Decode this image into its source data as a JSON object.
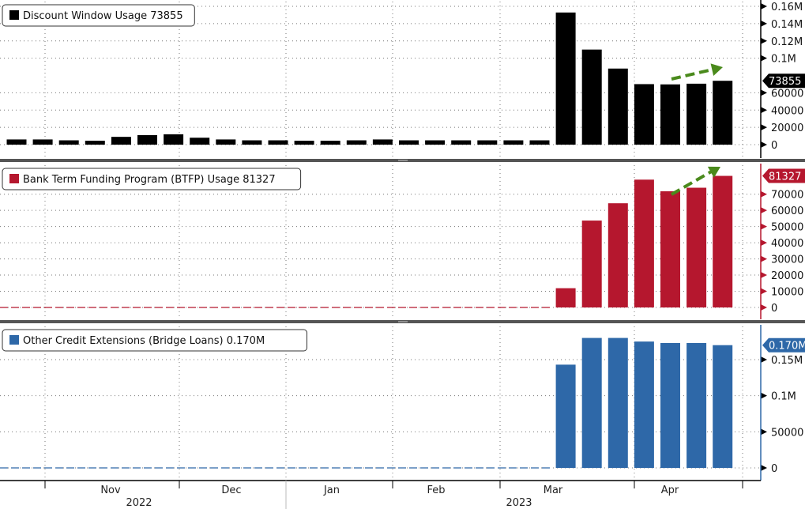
{
  "chart_data": [
    {
      "type": "bar",
      "title": "Discount Window Usage 73855",
      "legend_label": "Discount Window Usage 73855",
      "color": "#000000",
      "last_value_label": "73855",
      "ylim": [
        0,
        160000
      ],
      "yticks": [
        0,
        20000,
        40000,
        60000,
        100000,
        120000,
        140000,
        160000
      ],
      "ytick_labels": [
        "0",
        "20000",
        "40000",
        "60000",
        "0.1M",
        "0.12M",
        "0.14M",
        "0.16M"
      ],
      "values": [
        6000,
        6000,
        5000,
        4500,
        9000,
        11000,
        12000,
        8000,
        6000,
        5000,
        5000,
        4500,
        4500,
        5000,
        6000,
        5000,
        5000,
        5000,
        5000,
        5000,
        5000,
        152850,
        110000,
        88000,
        70000,
        69700,
        70500,
        73855
      ]
    },
    {
      "type": "bar",
      "title": "Bank Term Funding Program (BTFP) Usage 81327",
      "legend_label": "Bank Term Funding Program (BTFP) Usage 81327",
      "color": "#b5172e",
      "last_value_label": "81327",
      "ylim": [
        0,
        85000
      ],
      "yticks": [
        0,
        10000,
        20000,
        30000,
        40000,
        50000,
        60000,
        70000
      ],
      "ytick_labels": [
        "0",
        "10000",
        "20000",
        "30000",
        "40000",
        "50000",
        "60000",
        "70000"
      ],
      "values": [
        0,
        0,
        0,
        0,
        0,
        0,
        0,
        0,
        0,
        0,
        0,
        0,
        0,
        0,
        0,
        0,
        0,
        0,
        0,
        0,
        0,
        11900,
        53700,
        64400,
        79000,
        71800,
        74000,
        81327
      ]
    },
    {
      "type": "bar",
      "title": "Other Credit Extensions (Bridge Loans) 0.170M",
      "legend_label": "Other Credit Extensions (Bridge Loans) 0.170M",
      "color": "#2e68a8",
      "last_value_label": "0.170M",
      "ylim": [
        0,
        185000
      ],
      "yticks": [
        0,
        50000,
        100000,
        150000
      ],
      "ytick_labels": [
        "0",
        "50000",
        "0.1M",
        "0.15M"
      ],
      "values": [
        0,
        0,
        0,
        0,
        0,
        0,
        0,
        0,
        0,
        0,
        0,
        0,
        0,
        0,
        0,
        0,
        0,
        0,
        0,
        0,
        0,
        143000,
        180000,
        180000,
        175000,
        173000,
        173000,
        170000
      ]
    }
  ],
  "x_axis": {
    "months": [
      "Nov",
      "Dec",
      "Jan",
      "Feb",
      "Mar",
      "Apr"
    ],
    "years": [
      "2022",
      "2023"
    ]
  },
  "arrow_color": "#4a8a1c"
}
